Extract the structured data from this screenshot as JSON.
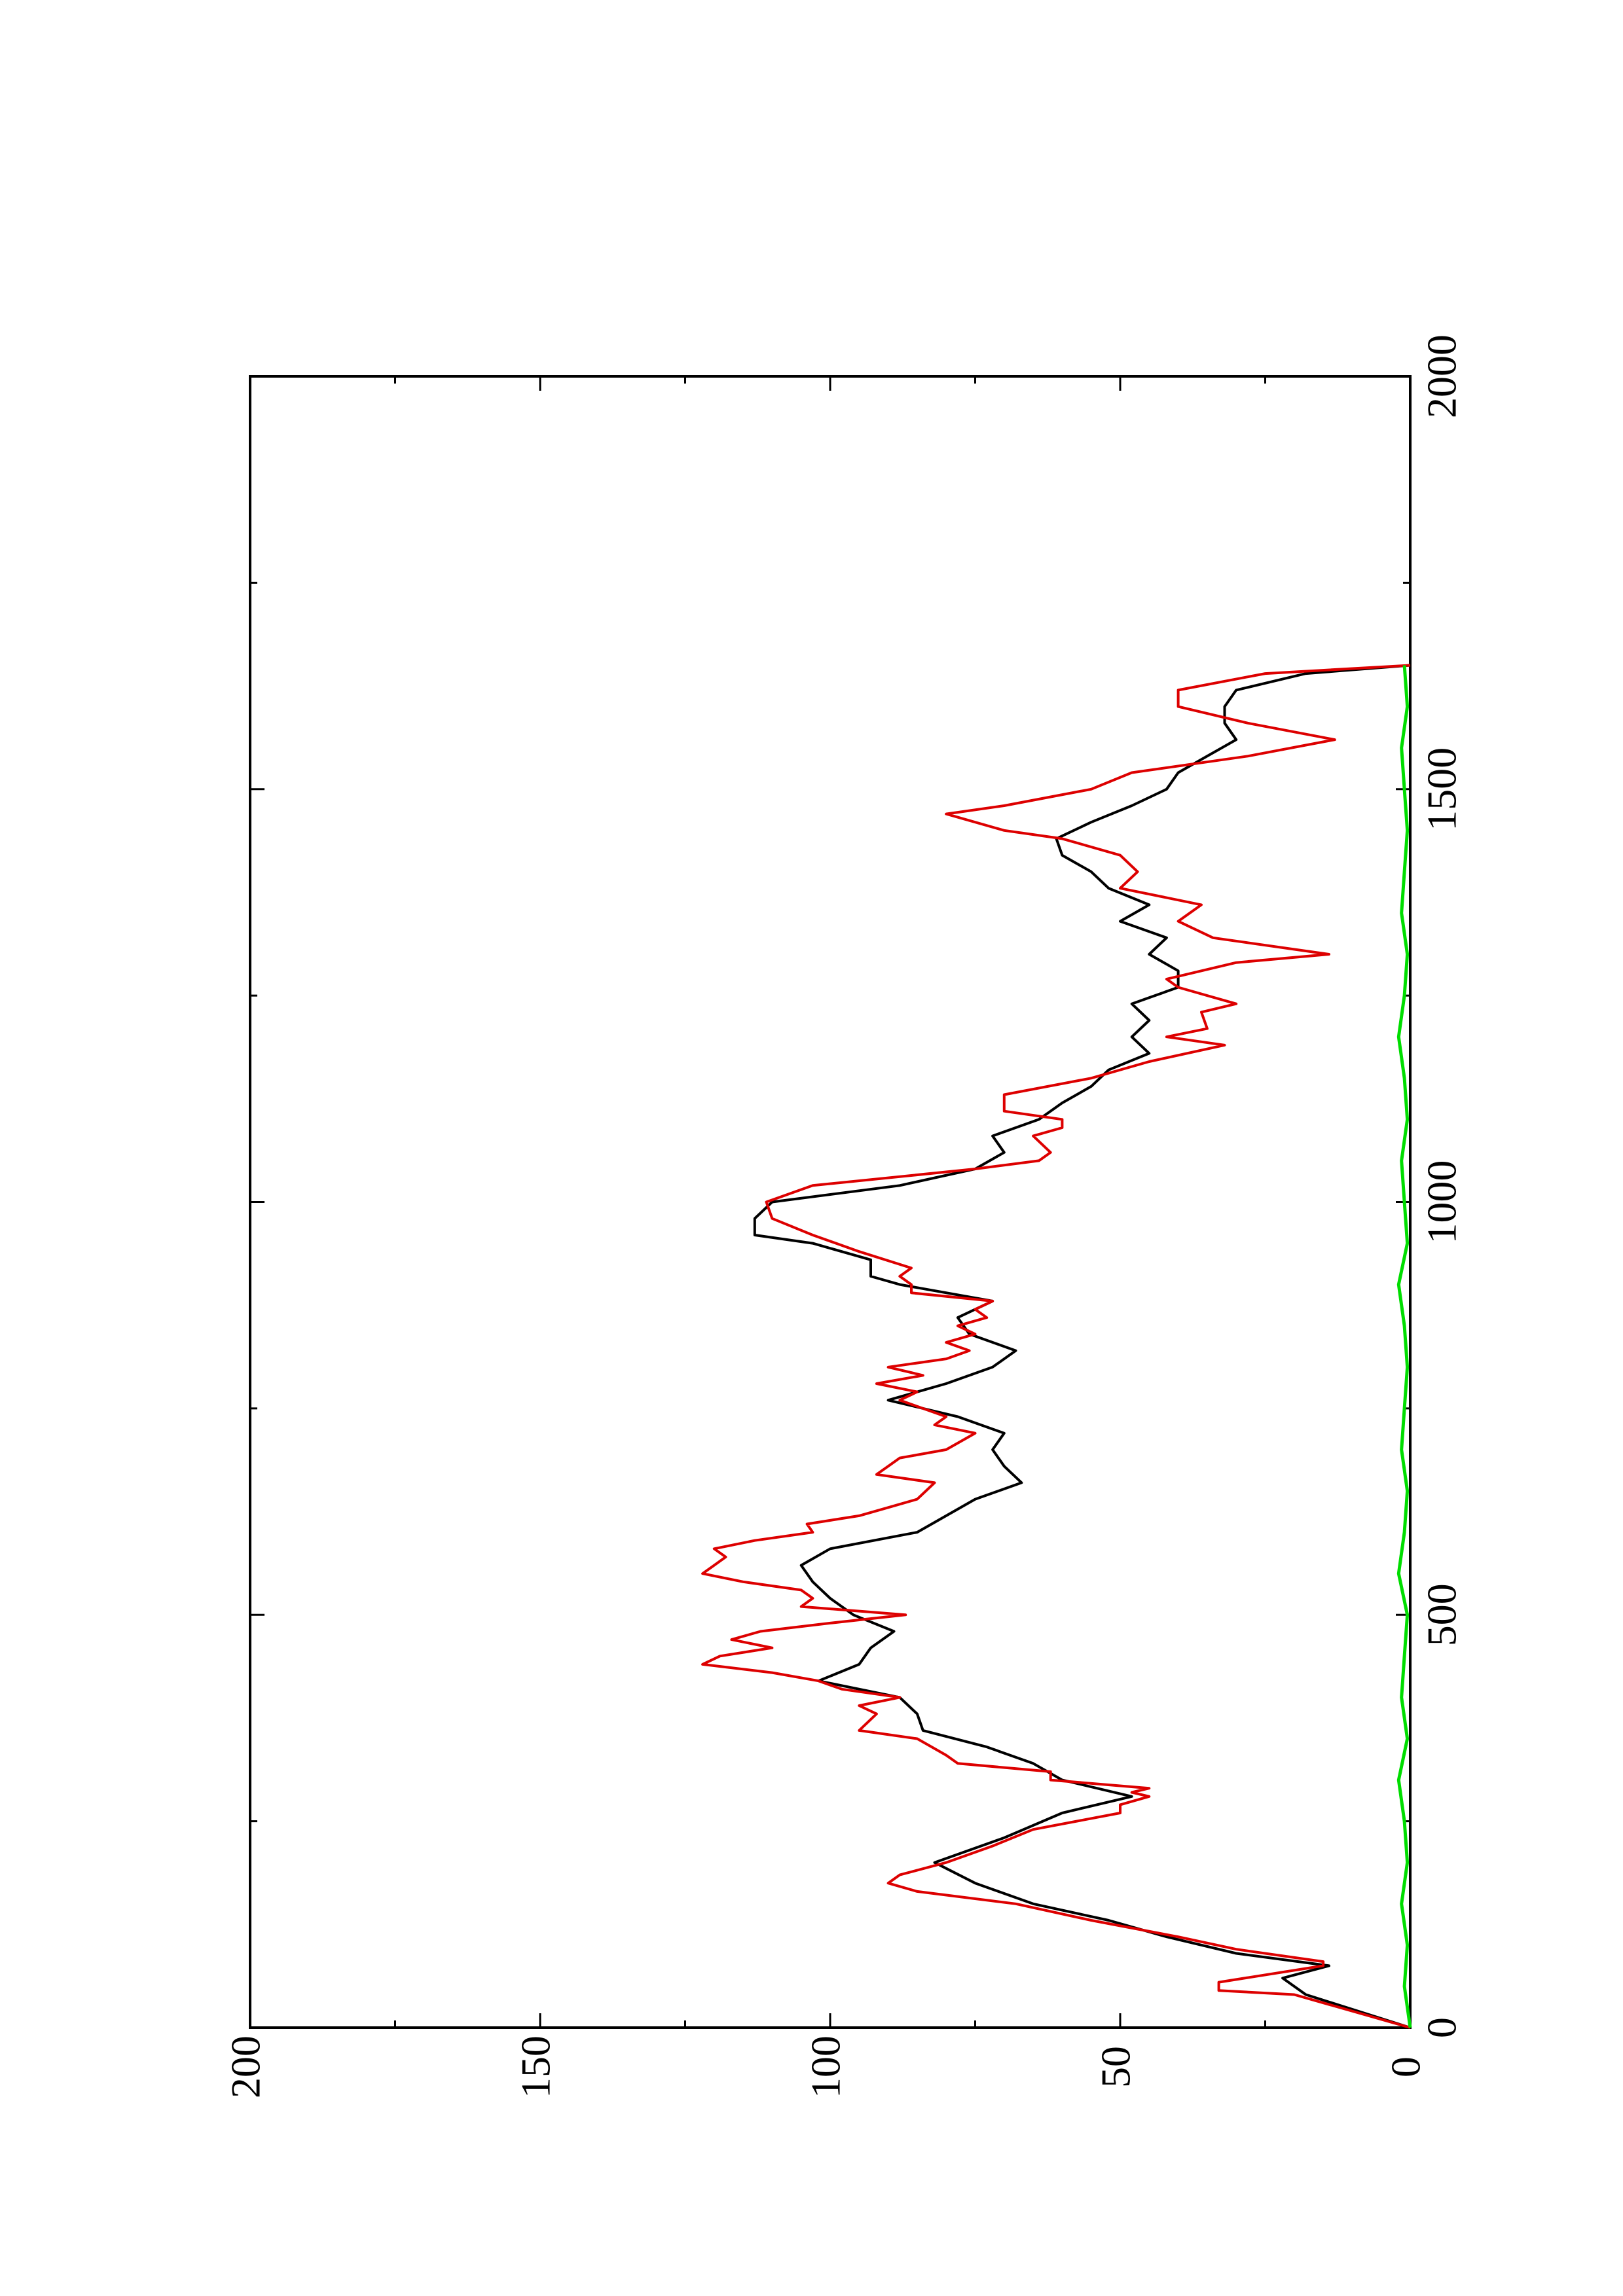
{
  "chart_data": {
    "type": "line",
    "orientation": "rotated-90-ccw",
    "title": "",
    "xlabel": "",
    "ylabel": "",
    "xlim": [
      0,
      2000
    ],
    "ylim": [
      0,
      200
    ],
    "xticks": [
      "0",
      "500",
      "1000",
      "1500",
      "2000"
    ],
    "yticks": [
      "0",
      "50",
      "100",
      "150",
      "200"
    ],
    "x_minor_step": 250,
    "y_minor_step": 25,
    "grid": false,
    "legend": "none",
    "series": [
      {
        "color": "#000000",
        "x": [
          0,
          40,
          60,
          75,
          90,
          110,
          130,
          150,
          175,
          200,
          230,
          260,
          280,
          300,
          320,
          340,
          360,
          380,
          400,
          420,
          440,
          460,
          480,
          500,
          520,
          540,
          560,
          580,
          600,
          620,
          640,
          660,
          680,
          700,
          720,
          740,
          760,
          780,
          800,
          820,
          840,
          860,
          880,
          900,
          910,
          930,
          950,
          960,
          980,
          1000,
          1020,
          1040,
          1060,
          1080,
          1100,
          1120,
          1140,
          1160,
          1180,
          1200,
          1220,
          1240,
          1260,
          1280,
          1300,
          1320,
          1340,
          1360,
          1380,
          1400,
          1420,
          1440,
          1460,
          1480,
          1500,
          1520,
          1540,
          1560,
          1580,
          1600,
          1620,
          1640,
          1650
        ],
        "y": [
          0,
          18,
          22,
          14,
          30,
          42,
          52,
          65,
          75,
          82,
          70,
          60,
          48,
          60,
          65,
          73,
          84,
          85,
          88,
          102,
          95,
          93,
          89,
          96,
          100,
          103,
          105,
          100,
          85,
          80,
          75,
          67,
          70,
          72,
          70,
          78,
          90,
          80,
          72,
          68,
          76,
          78,
          72,
          88,
          93,
          93,
          103,
          113,
          113,
          110,
          88,
          75,
          70,
          72,
          64,
          60,
          55,
          52,
          45,
          48,
          45,
          48,
          40,
          40,
          45,
          42,
          50,
          45,
          52,
          55,
          60,
          61,
          55,
          48,
          42,
          40,
          35,
          30,
          32,
          32,
          30,
          18,
          0
        ]
      },
      {
        "color": "#dd0000",
        "x": [
          0,
          40,
          45,
          55,
          75,
          80,
          95,
          110,
          130,
          150,
          165,
          175,
          185,
          200,
          220,
          240,
          260,
          270,
          280,
          285,
          290,
          300,
          310,
          320,
          330,
          350,
          360,
          380,
          390,
          400,
          410,
          420,
          430,
          440,
          450,
          460,
          470,
          480,
          490,
          500,
          510,
          520,
          530,
          540,
          550,
          560,
          570,
          580,
          590,
          600,
          610,
          620,
          630,
          640,
          660,
          670,
          680,
          690,
          700,
          720,
          730,
          740,
          760,
          770,
          780,
          790,
          800,
          810,
          820,
          830,
          840,
          850,
          860,
          870,
          880,
          890,
          900,
          910,
          920,
          940,
          960,
          980,
          1000,
          1020,
          1040,
          1050,
          1060,
          1080,
          1090,
          1100,
          1110,
          1130,
          1150,
          1170,
          1190,
          1200,
          1210,
          1230,
          1240,
          1260,
          1270,
          1290,
          1300,
          1320,
          1340,
          1360,
          1380,
          1400,
          1420,
          1440,
          1450,
          1470,
          1480,
          1500,
          1520,
          1540,
          1560,
          1580,
          1600,
          1620,
          1640,
          1650
        ],
        "y": [
          0,
          20,
          33,
          33,
          15,
          15,
          30,
          40,
          55,
          68,
          85,
          90,
          88,
          80,
          72,
          65,
          50,
          50,
          45,
          48,
          45,
          62,
          62,
          78,
          80,
          85,
          95,
          92,
          95,
          88,
          98,
          102,
          110,
          122,
          119,
          110,
          117,
          112,
          100,
          87,
          105,
          103,
          105,
          115,
          122,
          120,
          118,
          120,
          113,
          103,
          104,
          95,
          90,
          85,
          82,
          92,
          90,
          88,
          80,
          75,
          82,
          80,
          88,
          85,
          92,
          84,
          90,
          80,
          76,
          80,
          75,
          78,
          73,
          75,
          72,
          86,
          86,
          88,
          86,
          95,
          103,
          110,
          111,
          103,
          75,
          64,
          62,
          65,
          60,
          60,
          70,
          70,
          55,
          45,
          32,
          42,
          35,
          36,
          30,
          40,
          42,
          30,
          14,
          34,
          40,
          36,
          50,
          47,
          50,
          60,
          70,
          80,
          70,
          55,
          48,
          28,
          13,
          28,
          40,
          40,
          25,
          0
        ]
      },
      {
        "color": "#00dd00",
        "x": [
          0,
          50,
          100,
          150,
          200,
          250,
          300,
          350,
          400,
          450,
          500,
          550,
          600,
          650,
          700,
          750,
          800,
          850,
          900,
          950,
          1000,
          1050,
          1100,
          1150,
          1200,
          1250,
          1300,
          1350,
          1400,
          1450,
          1500,
          1550,
          1600,
          1650
        ],
        "y": [
          0,
          1,
          0.5,
          1.5,
          0.5,
          1,
          2,
          0.5,
          1.5,
          1,
          0.5,
          2,
          1,
          0.5,
          1.5,
          1,
          0.5,
          1,
          2,
          0.5,
          1,
          1.5,
          0.5,
          1,
          2,
          1,
          0.5,
          1.5,
          1,
          0.5,
          1,
          1.5,
          0.5,
          1
        ]
      }
    ]
  }
}
